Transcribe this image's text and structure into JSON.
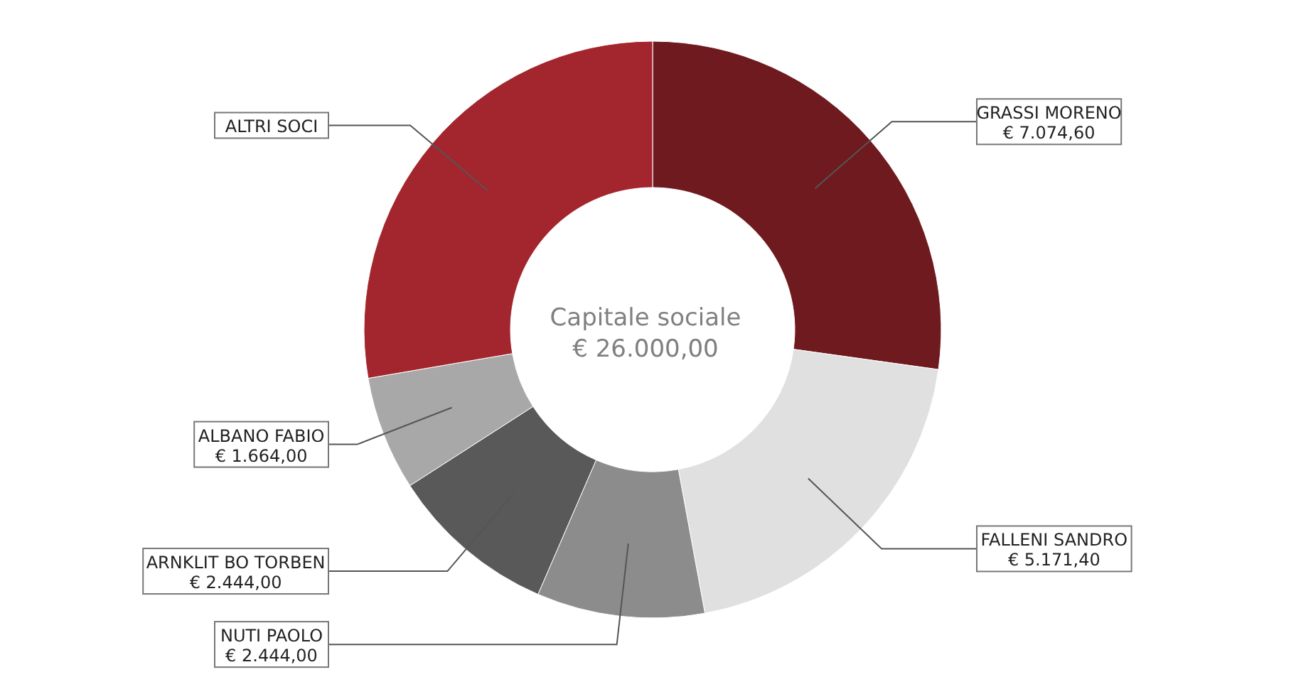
{
  "chart_data": {
    "type": "donut",
    "title": "Capitale sociale",
    "subtitle": "€ 26.000,00",
    "categories": [
      "GRASSI MORENO",
      "FALLENI SANDRO",
      "NUTI PAOLO",
      "ARNKLIT BO TORBEN",
      "ALBANO FABIO",
      "ALTRI SOCI"
    ],
    "values": [
      7074.6,
      5171.4,
      2444,
      2444,
      1664,
      7202
    ],
    "value_labels": [
      "€ 7.074,60",
      "€ 5.171,40",
      "€ 2.444,00",
      "€ 2.444,00",
      "€ 1.664,00",
      null
    ],
    "colors": [
      "#6e1a1f",
      "#e0e0e0",
      "#8c8c8c",
      "#595959",
      "#a8a8a8",
      "#a3262e"
    ],
    "legend": false
  }
}
